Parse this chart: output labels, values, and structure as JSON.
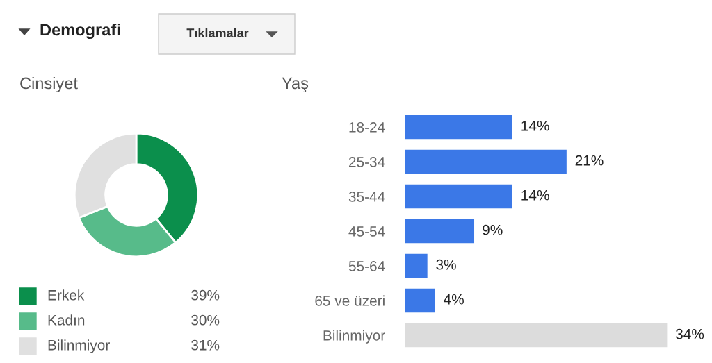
{
  "chart_data": [
    {
      "type": "donut",
      "title": "Cinsiyet",
      "annotations": [
        "Demografi",
        "Tıklamalar"
      ],
      "categories": [
        "Erkek",
        "Kadın",
        "Bilinmiyor"
      ],
      "values": [
        39,
        30,
        31
      ],
      "colors": [
        "#0b8f4c",
        "#57bb8a",
        "#e0e0e0"
      ],
      "value_labels": [
        "39%",
        "30%",
        "31%"
      ],
      "legend": "bottom"
    },
    {
      "type": "bar",
      "title": "Yaş",
      "orientation": "horizontal",
      "categories": [
        "18-24",
        "25-34",
        "35-44",
        "45-54",
        "55-64",
        "65 ve üzeri",
        "Bilinmiyor"
      ],
      "values": [
        14,
        21,
        14,
        9,
        3,
        4,
        34
      ],
      "colors": [
        "#3b78e7",
        "#3b78e7",
        "#3b78e7",
        "#3b78e7",
        "#3b78e7",
        "#3b78e7",
        "#dcdcdc"
      ],
      "value_labels": [
        "14%",
        "21%",
        "14%",
        "9%",
        "3%",
        "4%",
        "34%"
      ]
    }
  ]
}
